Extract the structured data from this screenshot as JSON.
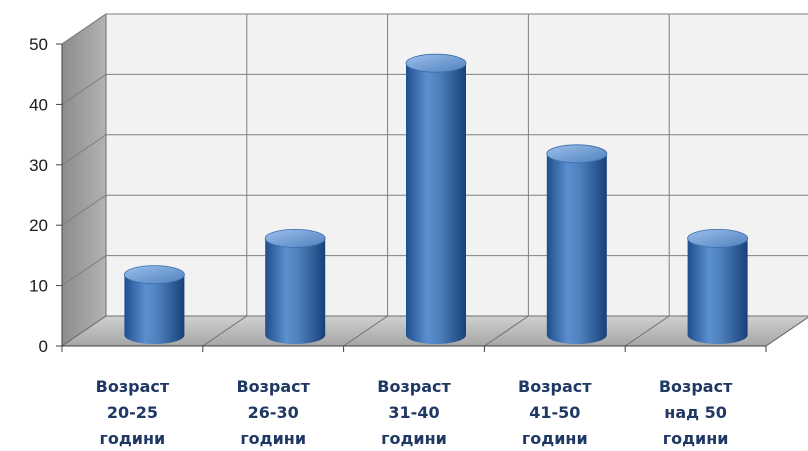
{
  "chart_data": {
    "type": "bar",
    "style": "3d-cylinder",
    "categories": [
      [
        "Возраст",
        "20-25",
        "години"
      ],
      [
        "Возраст",
        "26-30",
        "години"
      ],
      [
        "Возраст",
        "31-40",
        "години"
      ],
      [
        "Возраст",
        "41-50",
        "години"
      ],
      [
        "Возраст",
        "над 50",
        "години"
      ]
    ],
    "values": [
      10,
      16,
      45,
      30,
      16
    ],
    "yticks": [
      "0",
      "10",
      "20",
      "30",
      "40",
      "50"
    ],
    "ylim": [
      0,
      50
    ],
    "grid": true,
    "legend": "none",
    "colors": {
      "bar": "#4f81bd",
      "bar_dark": "#1f4e8c",
      "bar_light": "#9cc0ec",
      "back_wall": "#f2f2f2",
      "side_wall": "#a6a6a6",
      "floor": "#bfbfbf",
      "grid": "#7f7f7f",
      "label": "#1f3864"
    }
  }
}
